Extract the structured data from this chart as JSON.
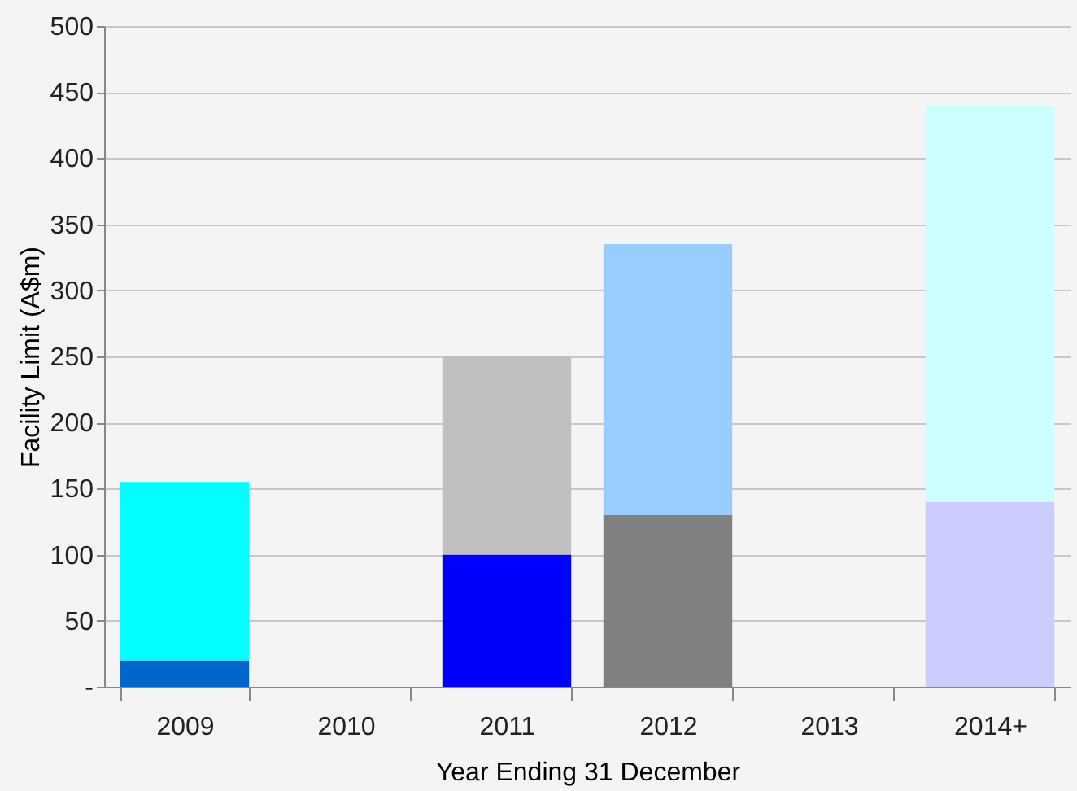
{
  "chart_data": {
    "type": "bar",
    "stacked": true,
    "xlabel": "Year Ending 31 December",
    "ylabel": "Facility Limit (A$m)",
    "categories": [
      "2009",
      "2010",
      "2011",
      "2012",
      "2013",
      "2014+"
    ],
    "series": [
      {
        "colors": [
          "#0066cc",
          null,
          "#0000ff",
          "#808080",
          null,
          "#ccccff"
        ],
        "values": [
          20,
          null,
          100,
          130,
          null,
          140
        ]
      },
      {
        "colors": [
          "#00ffff",
          null,
          "#c0c0c0",
          "#99ccff",
          null,
          "#ccffff"
        ],
        "values": [
          135,
          null,
          150,
          205,
          null,
          300
        ]
      }
    ],
    "ylim": [
      0,
      500
    ],
    "yticks": [
      {
        "value": 0,
        "label": "-"
      },
      50,
      100,
      150,
      200,
      250,
      300,
      350,
      400,
      450,
      500
    ],
    "grid": "y"
  }
}
